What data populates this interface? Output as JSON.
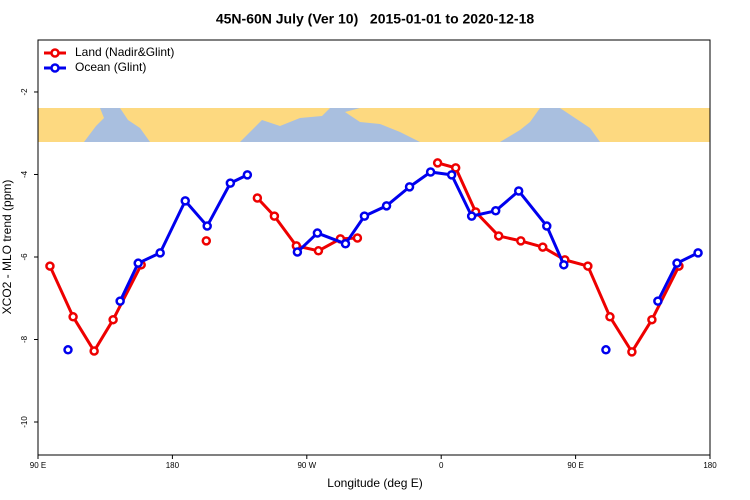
{
  "chart_data": {
    "type": "line",
    "title": "45N-60N July (Ver 10)   2015-01-01 to 2020-12-18",
    "x_label": "Longitude (deg E)",
    "y_label": "XCO2 - MLO trend (ppm)",
    "xlim": [
      90,
      540
    ],
    "ylim": [
      -10.8,
      -0.74
    ],
    "xticks": [
      {
        "value": 90,
        "label": "90 E"
      },
      {
        "value": 180,
        "label": "180"
      },
      {
        "value": 270,
        "label": "90 W"
      },
      {
        "value": 360,
        "label": "0"
      },
      {
        "value": 450,
        "label": "90 E"
      },
      {
        "value": 540,
        "label": "180"
      }
    ],
    "yticks": [
      -2,
      -4,
      -6,
      -8,
      -10
    ],
    "legend_position": "top-left",
    "series": [
      {
        "name": "Land (Nadir&Glint)",
        "color": "#ee0000",
        "x": [
          98,
          113.5,
          127.6,
          140.3,
          159.1,
          null,
          202.7,
          null,
          236.9,
          248.3,
          263,
          277.8,
          292.5,
          303.9,
          null,
          357.6,
          369.7,
          383.1,
          398.5,
          413.3,
          428,
          442.8,
          458.2,
          473,
          487.7,
          501.1,
          519.2
        ],
        "values": [
          -6.22,
          -7.45,
          -8.28,
          -7.52,
          -6.19,
          null,
          -5.61,
          null,
          -4.57,
          -5.01,
          -5.73,
          -5.85,
          -5.56,
          -5.54,
          null,
          -3.72,
          -3.84,
          -4.91,
          -5.49,
          -5.61,
          -5.76,
          -6.07,
          -6.22,
          -7.45,
          -8.3,
          -7.52,
          -6.22
        ]
      },
      {
        "name": "Ocean (Glint)",
        "color": "#0000ee",
        "x": [
          110.1,
          null,
          145,
          157.1,
          171.8,
          188.6,
          203.3,
          218.8,
          230.2,
          null,
          263.7,
          277.1,
          295.9,
          308.6,
          323.4,
          338.8,
          352.9,
          367,
          380.4,
          396.5,
          411.9,
          430.7,
          442.1,
          null,
          470.3,
          null,
          505.1,
          517.9,
          532
        ],
        "values": [
          -8.25,
          null,
          -7.07,
          -6.15,
          -5.9,
          -4.64,
          -5.25,
          -4.21,
          -4.01,
          null,
          -5.88,
          -5.42,
          -5.68,
          -5.01,
          -4.76,
          -4.3,
          -3.94,
          -4.01,
          -5.01,
          -4.88,
          -4.4,
          -5.25,
          -6.19,
          null,
          -8.25,
          null,
          -7.07,
          -6.15,
          -5.9
        ]
      }
    ]
  }
}
